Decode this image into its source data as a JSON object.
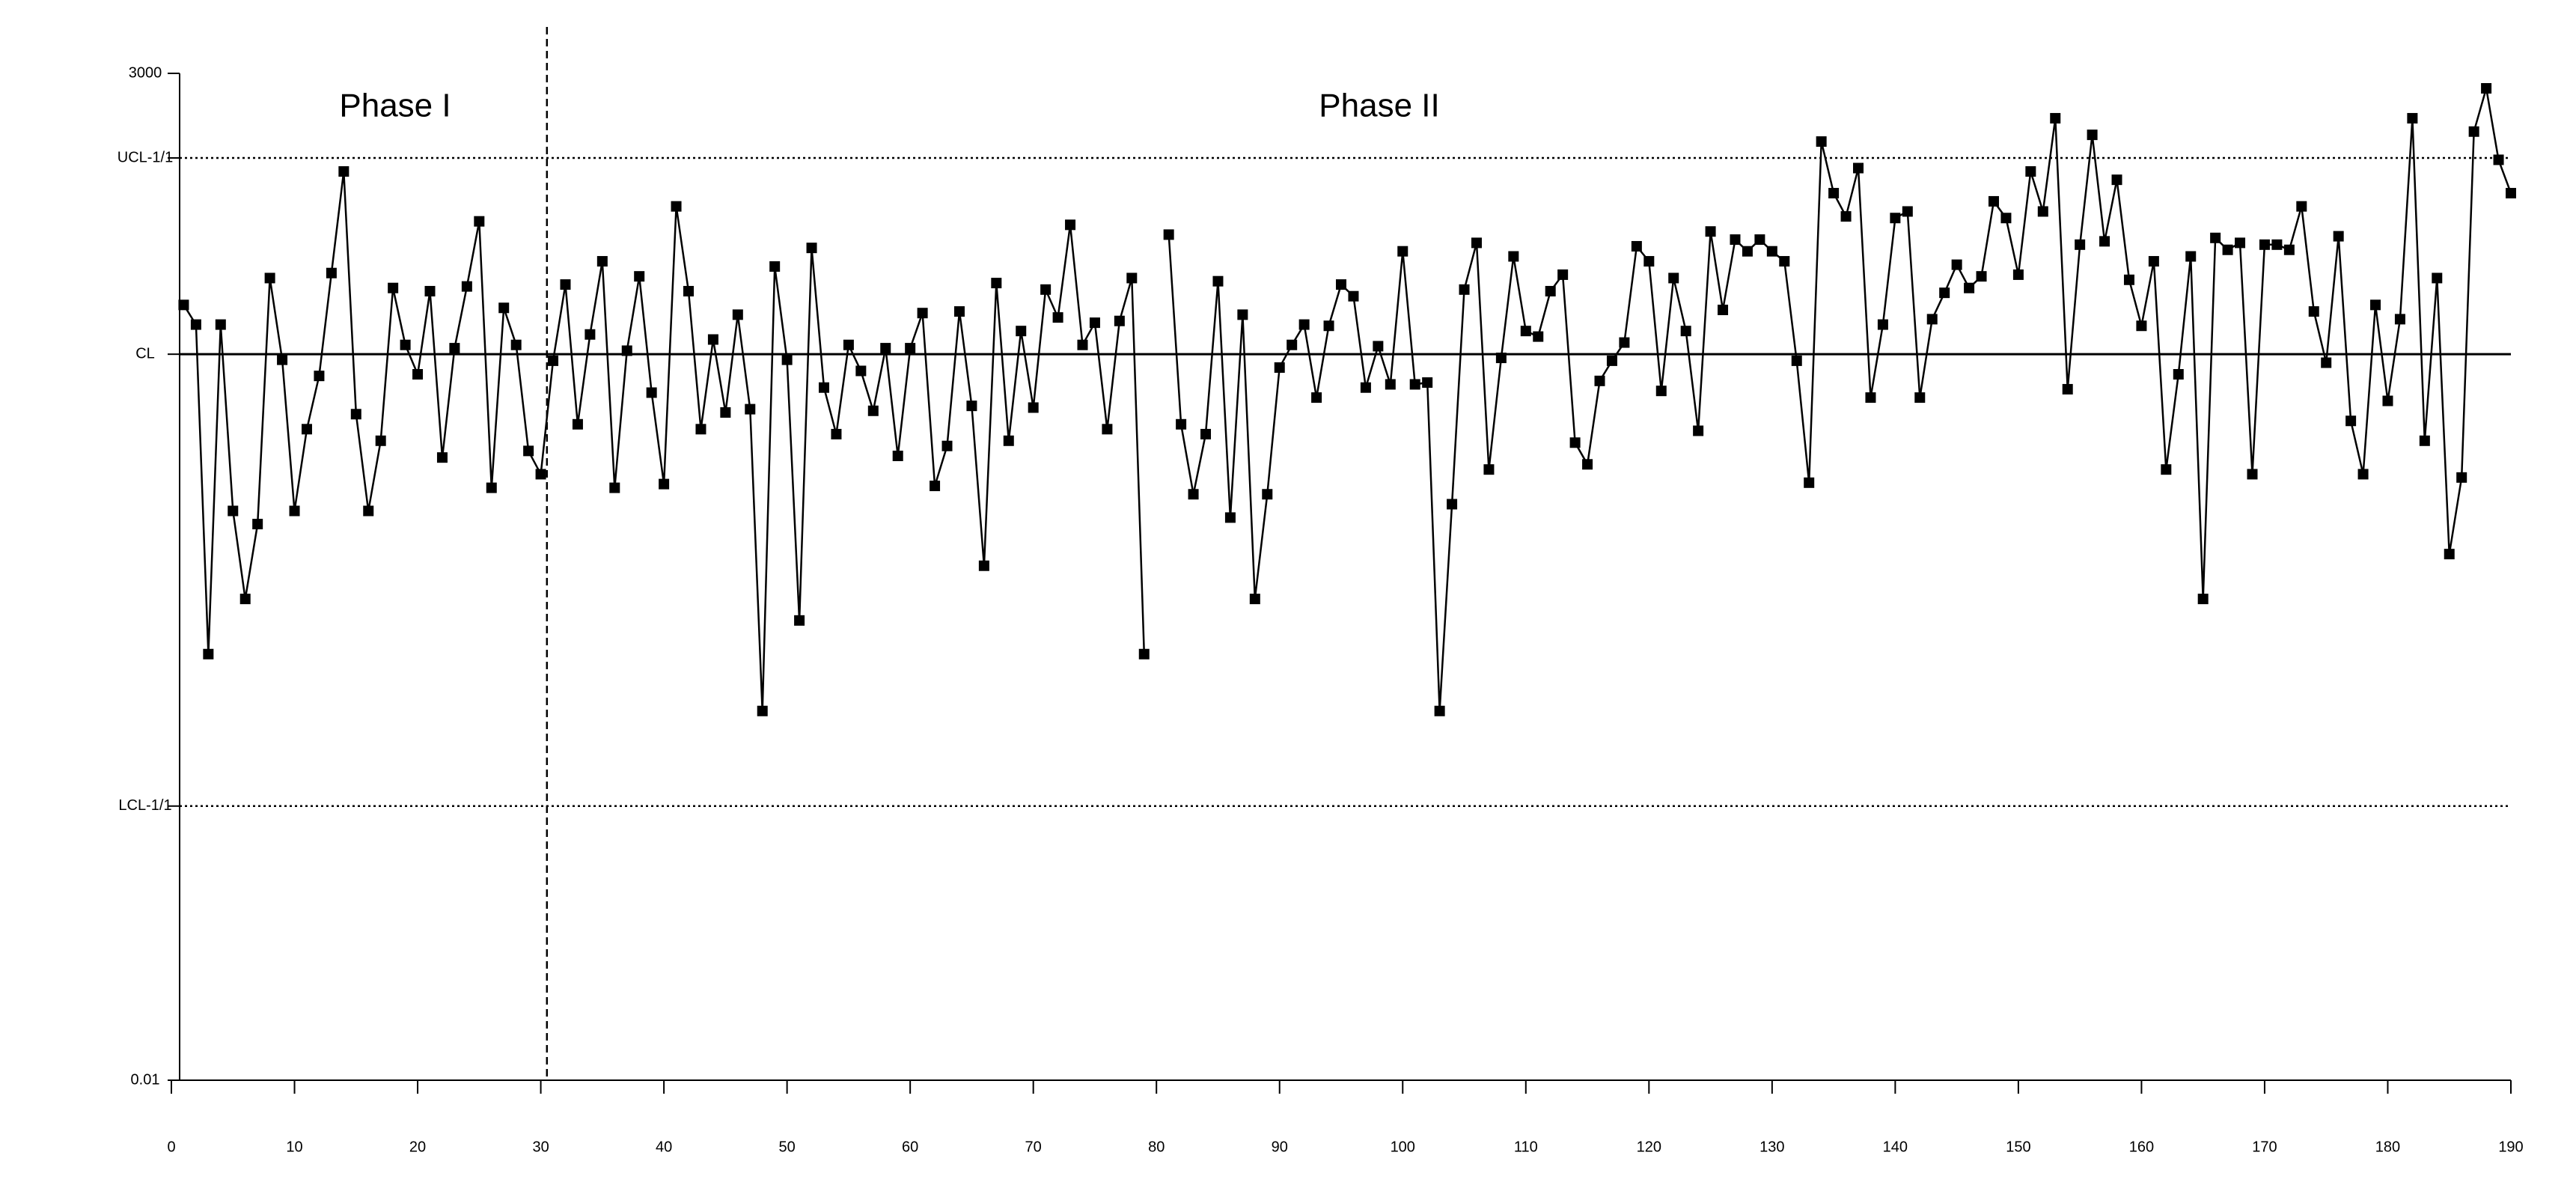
{
  "chart_data": {
    "type": "line",
    "log_y": true,
    "color": "#000000",
    "annotations": [
      {
        "text": "Phase I"
      },
      {
        "text": "Phase II"
      }
    ],
    "phase_split": 30.5,
    "xlim": [
      0,
      190
    ],
    "xticks": [
      0,
      10,
      20,
      30,
      40,
      50,
      60,
      70,
      80,
      90,
      100,
      110,
      120,
      130,
      140,
      150,
      160,
      170,
      180,
      190
    ],
    "ylim": [
      0.01,
      3000
    ],
    "yticks": [
      3000,
      {
        "value": 1040,
        "label": "UCL-1/1",
        "line": "dotted"
      },
      {
        "value": 89,
        "label": "CL",
        "line": "solid"
      },
      {
        "value": 0.31,
        "label": "LCL-1/1",
        "line": "dotted"
      },
      0.01
    ],
    "x": [
      1,
      2,
      3,
      4,
      5,
      6,
      7,
      8,
      9,
      10,
      11,
      12,
      13,
      14,
      15,
      16,
      17,
      18,
      19,
      20,
      21,
      22,
      23,
      24,
      25,
      26,
      27,
      28,
      29,
      30,
      31,
      32,
      33,
      34,
      35,
      36,
      37,
      38,
      39,
      40,
      41,
      42,
      43,
      44,
      45,
      46,
      47,
      48,
      49,
      50,
      51,
      52,
      53,
      54,
      55,
      56,
      57,
      58,
      59,
      60,
      61,
      62,
      63,
      64,
      65,
      66,
      67,
      68,
      69,
      70,
      71,
      72,
      73,
      74,
      75,
      76,
      77,
      78,
      79,
      80,
      81,
      82,
      83,
      84,
      85,
      86,
      87,
      88,
      89,
      90,
      91,
      92,
      93,
      94,
      95,
      96,
      97,
      98,
      99,
      100,
      101,
      102,
      103,
      104,
      105,
      106,
      107,
      108,
      109,
      110,
      111,
      112,
      113,
      114,
      115,
      116,
      117,
      118,
      119,
      120,
      121,
      122,
      123,
      124,
      125,
      126,
      127,
      128,
      129,
      130,
      131,
      132,
      133,
      134,
      135,
      136,
      137,
      138,
      139,
      140,
      141,
      142,
      143,
      144,
      145,
      146,
      147,
      148,
      149,
      150,
      151,
      152,
      153,
      154,
      155,
      156,
      157,
      158,
      159,
      160,
      161,
      162,
      163,
      164,
      165,
      166,
      167,
      168,
      169,
      170,
      171,
      172,
      173,
      174,
      175,
      176,
      177,
      178,
      179,
      180,
      181,
      182,
      183,
      184,
      185,
      186,
      187,
      188,
      189,
      190
    ],
    "values": [
      165,
      129,
      2.08,
      129,
      12.5,
      4.15,
      10.6,
      231,
      83,
      12.5,
      34.8,
      67.8,
      246,
      878,
      42,
      12.5,
      30.1,
      204,
      100,
      69.2,
      196,
      24.4,
      96,
      208,
      470,
      16.7,
      159,
      100,
      26.5,
      19.8,
      82,
      213,
      37,
      114,
      285,
      16.7,
      93,
      236,
      55,
      17.5,
      567,
      196,
      34.8,
      107,
      42.9,
      146,
      44.7,
      1.02,
      267,
      83,
      3.17,
      337,
      58.6,
      32.7,
      100,
      72.2,
      43.8,
      96,
      24.9,
      96,
      149,
      17.1,
      28.2,
      152,
      46.6,
      6.29,
      217,
      30.1,
      119,
      45.6,
      200,
      141,
      450,
      100,
      132,
      34.8,
      135,
      231,
      2.08,
      null,
      398,
      37,
      15.4,
      32.7,
      222,
      11.5,
      146,
      4.15,
      15.4,
      75.3,
      100,
      129,
      51.7,
      127,
      213,
      184,
      58.6,
      98.4,
      61,
      323,
      61,
      62.4,
      1.02,
      13.6,
      200,
      359,
      21,
      85,
      303,
      119,
      111,
      196,
      241,
      29.4,
      22.4,
      63.7,
      82,
      103,
      344,
      285,
      56.2,
      231,
      119,
      34.1,
      414,
      155,
      374,
      323,
      374,
      323,
      285,
      82,
      17.8,
      1277,
      669,
      500,
      916,
      51.7,
      129,
      490,
      532,
      51.7,
      138,
      192,
      273,
      204,
      236,
      604,
      490,
      241,
      878,
      532,
      1710,
      57.4,
      351,
      1389,
      366,
      791,
      226,
      127,
      285,
      21,
      69.2,
      303,
      4.15,
      382,
      329,
      359,
      19.8,
      351,
      351,
      329,
      567,
      152,
      80,
      390,
      38.6,
      19.8,
      165,
      49.6,
      138,
      1710,
      30.1,
      231,
      7.28,
      19,
      1447,
      2487,
      1016,
      669
    ]
  }
}
